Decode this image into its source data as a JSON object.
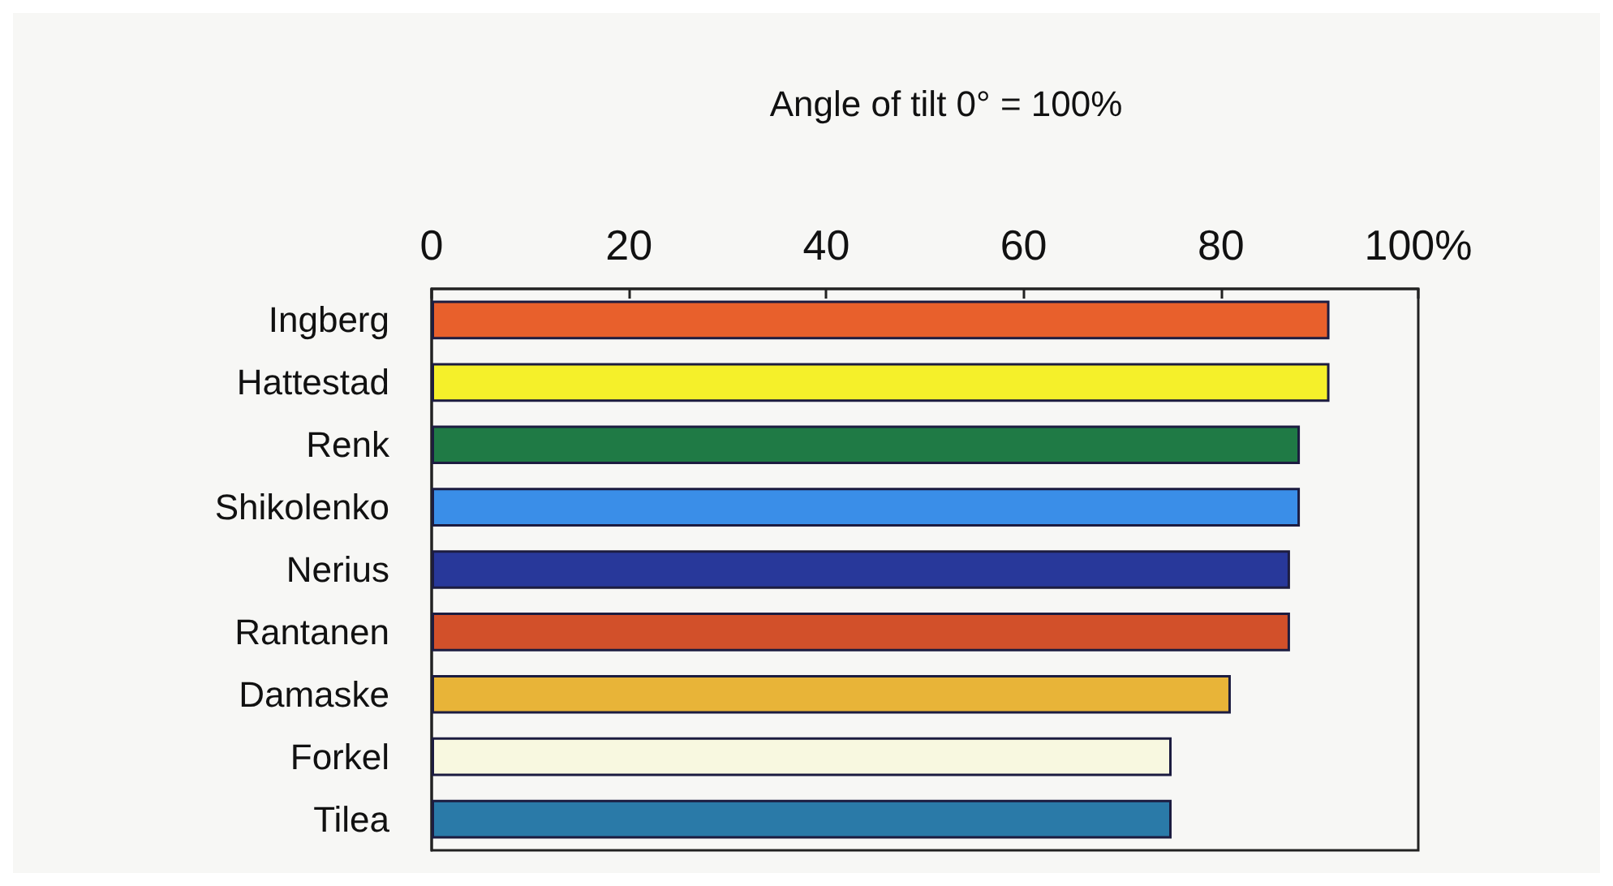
{
  "chart_data": {
    "type": "bar",
    "orientation": "horizontal",
    "title": "Angle of tilt 0° = 100%",
    "categories": [
      "Ingberg",
      "Hattestad",
      "Renk",
      "Shikolenko",
      "Nerius",
      "Rantanen",
      "Damaske",
      "Forkel",
      "Tilea"
    ],
    "values": [
      91,
      91,
      88,
      88,
      87,
      87,
      81,
      75,
      75
    ],
    "colors": [
      "#e8602c",
      "#f5f02a",
      "#1f7a45",
      "#3a8ee8",
      "#28389a",
      "#d2502a",
      "#e8b438",
      "#f8f8e0",
      "#2a7aa8"
    ],
    "xlim": [
      0,
      100
    ],
    "xticks": [
      0,
      20,
      40,
      60,
      80,
      {
        "value": 100,
        "label": "100%"
      }
    ],
    "grid": false
  }
}
